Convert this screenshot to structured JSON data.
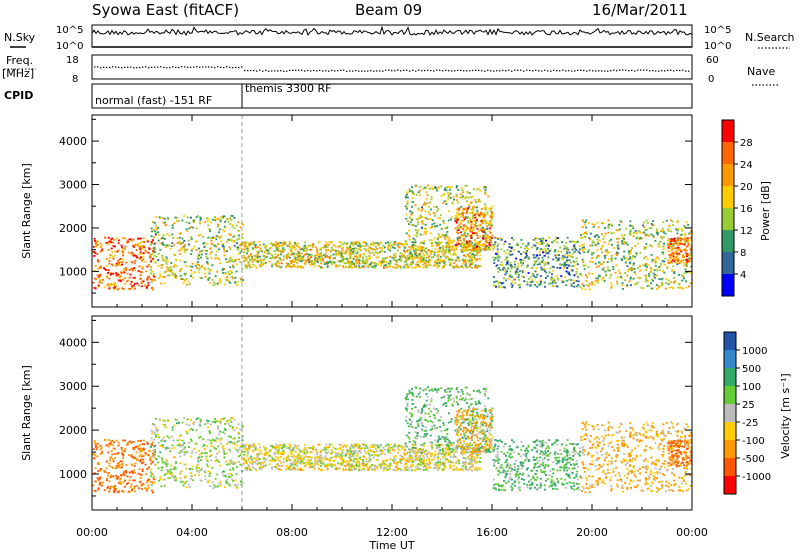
{
  "header": {
    "station": "Syowa East (fitACF)",
    "beam": "Beam 09",
    "date": "16/Mar/2011"
  },
  "top_panel": {
    "nsky_label": "N.Sky",
    "nsearch_label": "N.Search",
    "y_ticks_left": [
      "10^5",
      "10^0"
    ],
    "y_ticks_right": [
      "10^5",
      "10^0"
    ]
  },
  "freq_panel": {
    "freq_label_1": "Freq.",
    "freq_label_2": "[MHz]",
    "nave_label": "Nave",
    "y_ticks_left": [
      "18",
      "8"
    ],
    "y_ticks_right": [
      "60",
      "0"
    ]
  },
  "cpid_panel": {
    "label": "CPID",
    "segments": [
      "normal (fast) -151 RF",
      "themis 3300 RF"
    ]
  },
  "power_panel": {
    "ylabel": "Slant Range [km]",
    "y_ticks": [
      "4000",
      "3000",
      "2000",
      "1000"
    ],
    "colorbar_label": "Power [dB]",
    "colorbar_ticks": [
      "28",
      "24",
      "20",
      "16",
      "12",
      "8",
      "4"
    ],
    "colorbar_colors": [
      "#ff0000",
      "#ff6600",
      "#ff9900",
      "#ffcc00",
      "#99cc33",
      "#339966",
      "#336699",
      "#0000ff"
    ]
  },
  "velocity_panel": {
    "ylabel": "Slant Range [km]",
    "y_ticks": [
      "4000",
      "3000",
      "2000",
      "1000"
    ],
    "colorbar_label": "Velocity [m s⁻¹]",
    "colorbar_ticks": [
      "1000",
      "500",
      "100",
      "25",
      "-25",
      "-100",
      "-500",
      "-1000"
    ],
    "colorbar_colors": [
      "#2255aa",
      "#3388cc",
      "#33aa66",
      "#66cc33",
      "#bbbbbb",
      "#ffcc00",
      "#ff9900",
      "#ff5500",
      "#ff0000"
    ]
  },
  "x_axis": {
    "label": "Time UT",
    "ticks": [
      "00:00",
      "04:00",
      "08:00",
      "12:00",
      "16:00",
      "20:00",
      "00:00"
    ]
  },
  "chart_data": {
    "type": "heatmap",
    "title": "Syowa East (fitACF)",
    "xlabel": "Time UT",
    "ylabel": "Slant Range [km]",
    "x_range_hours": [
      0,
      24
    ],
    "y_range_km": [
      180,
      4600
    ],
    "power_scale_db": [
      0,
      30
    ],
    "velocity_scale_ms": [
      -1000,
      1000
    ],
    "cpid_change_hour": 6.0,
    "echo_regions": [
      {
        "t_start": 0.0,
        "t_end": 2.5,
        "r_min": 600,
        "r_max": 1800,
        "power_db": 24,
        "velocity_ms": -500
      },
      {
        "t_start": 2.3,
        "t_end": 6.0,
        "r_min": 700,
        "r_max": 2300,
        "power_db": 14,
        "velocity_ms": 25
      },
      {
        "t_start": 6.0,
        "t_end": 15.5,
        "r_min": 1100,
        "r_max": 1700,
        "power_db": 16,
        "velocity_ms": -25
      },
      {
        "t_start": 12.5,
        "t_end": 16.0,
        "r_min": 1500,
        "r_max": 3000,
        "power_db": 14,
        "velocity_ms": 100
      },
      {
        "t_start": 14.5,
        "t_end": 16.0,
        "r_min": 1500,
        "r_max": 2500,
        "power_db": 22,
        "velocity_ms": -100
      },
      {
        "t_start": 16.0,
        "t_end": 19.5,
        "r_min": 650,
        "r_max": 1800,
        "power_db": 10,
        "velocity_ms": 100
      },
      {
        "t_start": 19.5,
        "t_end": 24.0,
        "r_min": 600,
        "r_max": 2200,
        "power_db": 14,
        "velocity_ms": -100
      },
      {
        "t_start": 23.0,
        "t_end": 24.0,
        "r_min": 1200,
        "r_max": 1800,
        "power_db": 22,
        "velocity_ms": -500
      }
    ]
  }
}
